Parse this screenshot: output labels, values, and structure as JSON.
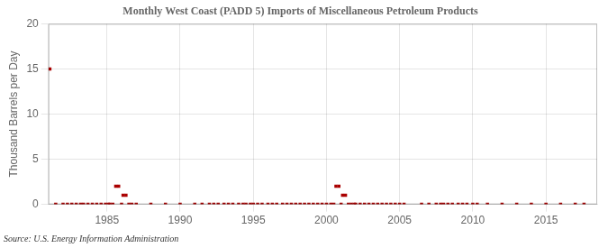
{
  "chart_data": {
    "type": "scatter",
    "title": "Monthly West Coast (PADD 5) Imports of Miscellaneous Petroleum Products",
    "ylabel": "Thousand Barrels per Day",
    "source": "Source: U.S. Energy Information Administration",
    "color": "#aa0000",
    "marker": "square",
    "grid": true,
    "xlim": [
      1981.0,
      2018.5
    ],
    "xticks": [
      1985,
      1990,
      1995,
      2000,
      2005,
      2010,
      2015
    ],
    "ylim": [
      0,
      20
    ],
    "yticks": [
      0,
      5,
      10,
      15,
      20
    ],
    "x": [
      1981.1,
      1981.5,
      1982.0,
      1982.3,
      1982.6,
      1982.9,
      1983.2,
      1983.4,
      1983.7,
      1984.0,
      1984.3,
      1984.6,
      1984.9,
      1985.1,
      1985.2,
      1985.4,
      1985.6,
      1985.8,
      1986.0,
      1986.1,
      1986.3,
      1986.5,
      1986.7,
      1987.0,
      1988.0,
      1989.0,
      1990.0,
      1991.0,
      1991.5,
      1992.0,
      1992.3,
      1992.6,
      1993.0,
      1993.3,
      1993.6,
      1994.0,
      1994.3,
      1994.5,
      1994.8,
      1995.0,
      1995.3,
      1995.6,
      1996.0,
      1996.3,
      1996.6,
      1997.0,
      1997.3,
      1997.6,
      1997.9,
      1998.2,
      1998.5,
      1998.8,
      1999.1,
      1999.4,
      1999.7,
      2000.0,
      2000.3,
      2000.5,
      2000.65,
      2000.85,
      2001.0,
      2001.1,
      2001.3,
      2001.5,
      2001.7,
      2001.9,
      2002.0,
      2002.3,
      2002.6,
      2002.9,
      2003.2,
      2003.5,
      2003.8,
      2004.1,
      2004.4,
      2004.7,
      2005.0,
      2005.3,
      2006.5,
      2007.0,
      2007.5,
      2007.8,
      2008.0,
      2008.3,
      2008.6,
      2009.0,
      2009.3,
      2009.6,
      2010.0,
      2010.3,
      2011.0,
      2012.0,
      2013.0,
      2014.0,
      2015.0,
      2016.0,
      2017.0,
      2017.6
    ],
    "values": [
      15.0,
      0.0,
      0.0,
      0.0,
      0.0,
      0.0,
      0.0,
      0.0,
      0.0,
      0.0,
      0.0,
      0.0,
      0.0,
      0.0,
      0.0,
      0.0,
      2.0,
      2.0,
      0.0,
      1.0,
      1.0,
      0.0,
      0.0,
      0.0,
      0.0,
      0.0,
      0.0,
      0.0,
      0.0,
      0.0,
      0.0,
      0.0,
      0.0,
      0.0,
      0.0,
      0.0,
      0.0,
      0.0,
      0.0,
      0.0,
      0.0,
      0.0,
      0.0,
      0.0,
      0.0,
      0.0,
      0.0,
      0.0,
      0.0,
      0.0,
      0.0,
      0.0,
      0.0,
      0.0,
      0.0,
      0.0,
      0.0,
      0.0,
      2.0,
      2.0,
      0.0,
      1.0,
      1.0,
      0.0,
      0.0,
      0.0,
      0.0,
      0.0,
      0.0,
      0.0,
      0.0,
      0.0,
      0.0,
      0.0,
      0.0,
      0.0,
      0.0,
      0.0,
      0.0,
      0.0,
      0.0,
      0.0,
      0.0,
      0.0,
      0.0,
      0.0,
      0.0,
      0.0,
      0.0,
      0.0,
      0.0,
      0.0,
      0.0,
      0.0,
      0.0,
      0.0,
      0.0,
      0.0
    ]
  }
}
